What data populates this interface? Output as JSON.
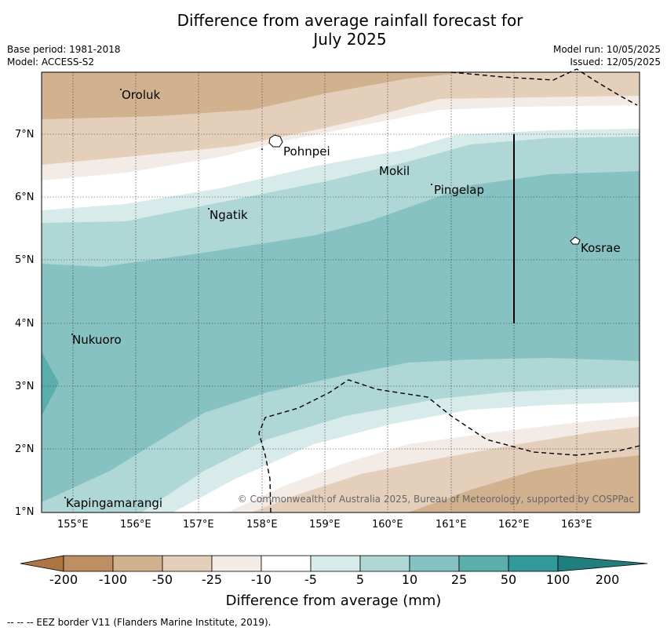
{
  "title_line1": "Difference from average rainfall forecast for",
  "title_line2": "July 2025",
  "base_period": "Base period: 1981-2018",
  "model": "Model: ACCESS-S2",
  "model_run": "Model run: 10/05/2025",
  "issued": "Issued: 12/05/2025",
  "copyright": "© Commonwealth of Australia 2025, Bureau of Meteorology, supported by COSPPac",
  "footer": "--  --  -- EEZ border V11 (Flanders Marine Institute, 2019).",
  "colorbar_title": "Difference from average (mm)",
  "lon_ticks": [
    "155°E",
    "156°E",
    "157°E",
    "158°E",
    "159°E",
    "160°E",
    "161°E",
    "162°E",
    "163°E"
  ],
  "lat_ticks": [
    "7°N",
    "6°N",
    "5°N",
    "4°N",
    "3°N",
    "2°N",
    "1°N"
  ],
  "colorbar": {
    "labels": [
      "-200",
      "-100",
      "-50",
      "-25",
      "-10",
      "-5",
      "5",
      "10",
      "25",
      "50",
      "100",
      "200"
    ],
    "colors": [
      "#ac7541",
      "#bd8f62",
      "#d2b18f",
      "#e4cfbb",
      "#f3ebe5",
      "#ffffff",
      "#d6ebea",
      "#aed7d6",
      "#85c2c1",
      "#5aaeab",
      "#31999a",
      "#1f7e7e"
    ]
  },
  "places": [
    {
      "name": "Oroluk",
      "lon": 155.75,
      "lat": 7.7
    },
    {
      "name": "Pohnpei",
      "lon": 158.25,
      "lat": 6.88
    },
    {
      "name": "Mokil",
      "lon": 159.85,
      "lat": 6.42
    },
    {
      "name": "Pingelap",
      "lon": 160.72,
      "lat": 6.12
    },
    {
      "name": "Ngatik",
      "lon": 157.15,
      "lat": 5.78
    },
    {
      "name": "Kosrae",
      "lon": 162.98,
      "lat": 5.32
    },
    {
      "name": "Nukuoro",
      "lon": 154.93,
      "lat": 3.85
    },
    {
      "name": "Kapingamarangi",
      "lon": 154.8,
      "lat": 1.08
    }
  ]
}
